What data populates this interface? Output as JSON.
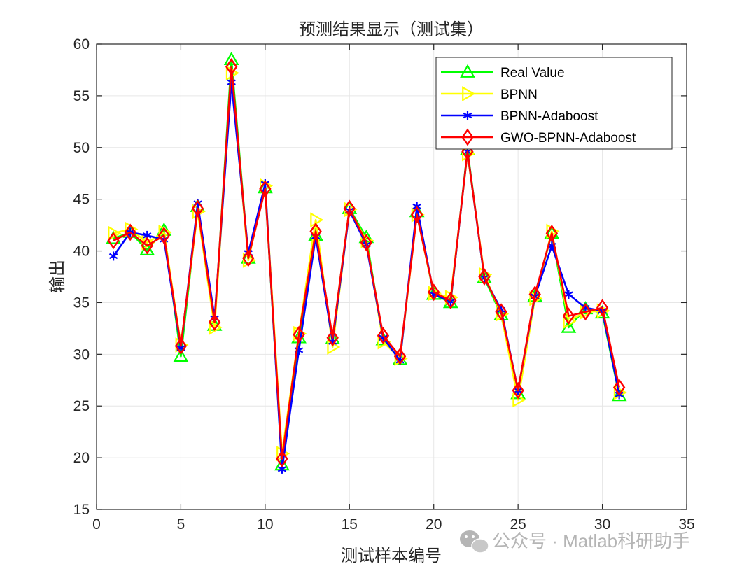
{
  "chart_data": {
    "type": "line",
    "title": "预测结果显示（测试集）",
    "xlabel": "测试样本编号",
    "ylabel": "输出",
    "xlim": [
      0,
      35
    ],
    "ylim": [
      15,
      60
    ],
    "xticks": [
      0,
      5,
      10,
      15,
      20,
      25,
      30,
      35
    ],
    "yticks": [
      15,
      20,
      25,
      30,
      35,
      40,
      45,
      50,
      55,
      60
    ],
    "grid": true,
    "legend_position": "top-right",
    "x": [
      1,
      2,
      3,
      4,
      5,
      6,
      7,
      8,
      9,
      10,
      11,
      12,
      13,
      14,
      15,
      16,
      17,
      18,
      19,
      20,
      21,
      22,
      23,
      24,
      25,
      26,
      27,
      28,
      29,
      30,
      31
    ],
    "series": [
      {
        "name": "Real Value",
        "color": "#00ff00",
        "marker": "triangle-up",
        "values": [
          41.2,
          41.8,
          40.1,
          42.0,
          29.8,
          44.3,
          32.8,
          58.5,
          39.3,
          46.1,
          19.3,
          31.6,
          41.5,
          31.5,
          44.1,
          41.3,
          31.4,
          29.5,
          43.8,
          35.8,
          35.0,
          49.8,
          37.4,
          33.8,
          26.2,
          35.6,
          41.7,
          32.6,
          34.4,
          34.0,
          26.0
        ]
      },
      {
        "name": "BPNN",
        "color": "#ffff00",
        "marker": "triangle-right",
        "values": [
          41.7,
          42.1,
          40.8,
          41.8,
          30.9,
          43.8,
          32.6,
          57.2,
          39.1,
          46.3,
          20.4,
          32.0,
          43.0,
          30.7,
          44.0,
          41.0,
          31.2,
          29.6,
          43.5,
          35.9,
          35.5,
          49.4,
          37.7,
          33.9,
          25.6,
          35.4,
          41.9,
          33.2,
          34.1,
          34.2,
          26.3
        ]
      },
      {
        "name": "BPNN-Adaboost",
        "color": "#0000ff",
        "marker": "asterisk",
        "values": [
          39.5,
          41.8,
          41.5,
          41.1,
          30.6,
          44.6,
          33.5,
          56.3,
          39.8,
          46.5,
          18.9,
          30.4,
          41.4,
          31.2,
          43.9,
          40.6,
          31.6,
          29.4,
          44.3,
          35.8,
          35.1,
          49.6,
          37.4,
          34.3,
          26.5,
          35.6,
          40.5,
          35.8,
          34.5,
          34.2,
          26.1
        ]
      },
      {
        "name": "GWO-BPNN-Adaboost",
        "color": "#ff0000",
        "marker": "diamond",
        "values": [
          41.0,
          41.8,
          40.5,
          41.5,
          30.8,
          44.1,
          33.1,
          57.8,
          39.3,
          46.0,
          19.9,
          31.9,
          41.9,
          31.6,
          44.1,
          40.8,
          31.8,
          29.8,
          43.5,
          36.0,
          35.2,
          49.6,
          37.5,
          34.1,
          26.5,
          35.8,
          41.7,
          33.7,
          34.1,
          34.5,
          26.8
        ]
      }
    ]
  },
  "watermark": {
    "text": "公众号 · Matlab科研助手",
    "icon": "wechat-icon"
  }
}
